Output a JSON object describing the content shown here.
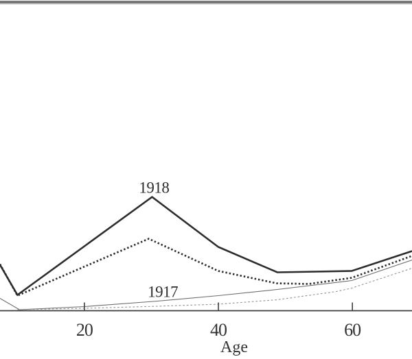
{
  "figure": {
    "background": "#ffffff",
    "scan_edge_color_dark": "#5c5c5c",
    "scan_edge_color_light": "#b0b0b0",
    "line_color_bold": "#2d2d2d",
    "line_color_thin": "#6b6b6b",
    "line_color_dashed": "#919191",
    "axis_color": "#3d3d3d",
    "text_color": "#333333"
  },
  "chart_data": {
    "type": "line",
    "title": "",
    "xlabel": "Age",
    "ylabel": "",
    "x_ticks": [
      20,
      40,
      60
    ],
    "x_range_visible": [
      7.4,
      68.9
    ],
    "y_axis_visible": false,
    "y_units": "relative death rate (y-axis cropped out of frame; values are heights above baseline, px)",
    "baseline_note": "x-axis baseline drawn edge-to-edge; plot cropped at left and right image edges",
    "grid": false,
    "legend_position": "inline-annotations",
    "annotations": [
      {
        "text": "1918",
        "x_age": 30.4,
        "height": 172
      },
      {
        "text": "1917",
        "x_age": 31.7,
        "height": 20
      }
    ],
    "series": [
      {
        "name": "1918 (bold solid)",
        "year": "1918",
        "style": "solid-bold",
        "points": [
          [
            7.4,
            67
          ],
          [
            10,
            23
          ],
          [
            30.1,
            166
          ],
          [
            40,
            93
          ],
          [
            48.8,
            56
          ],
          [
            59.9,
            58
          ],
          [
            68.9,
            87
          ]
        ]
      },
      {
        "name": "1918 (bold dotted)",
        "year": "1918",
        "style": "dotted-bold",
        "points": [
          [
            7.4,
            68
          ],
          [
            10,
            22
          ],
          [
            29.6,
            105
          ],
          [
            40,
            58
          ],
          [
            48.7,
            40
          ],
          [
            53.5,
            39
          ],
          [
            59.9,
            48
          ],
          [
            68.9,
            80
          ]
        ]
      },
      {
        "name": "1917 (thin solid)",
        "year": "1917",
        "style": "solid-thin",
        "points": [
          [
            7.4,
            18
          ],
          [
            10.3,
            1.5
          ],
          [
            20,
            6
          ],
          [
            30.9,
            14
          ],
          [
            40,
            22
          ],
          [
            48.8,
            31
          ],
          [
            59.9,
            44
          ],
          [
            68.9,
            74
          ]
        ]
      },
      {
        "name": "1917 (thin dashed)",
        "year": "1917",
        "style": "dashed-thin",
        "points": [
          [
            10,
            1.5
          ],
          [
            20,
            3.5
          ],
          [
            30.9,
            6.5
          ],
          [
            40,
            9.5
          ],
          [
            48.8,
            16
          ],
          [
            57.6,
            28
          ],
          [
            59.9,
            33
          ],
          [
            68.9,
            62
          ]
        ]
      }
    ]
  }
}
